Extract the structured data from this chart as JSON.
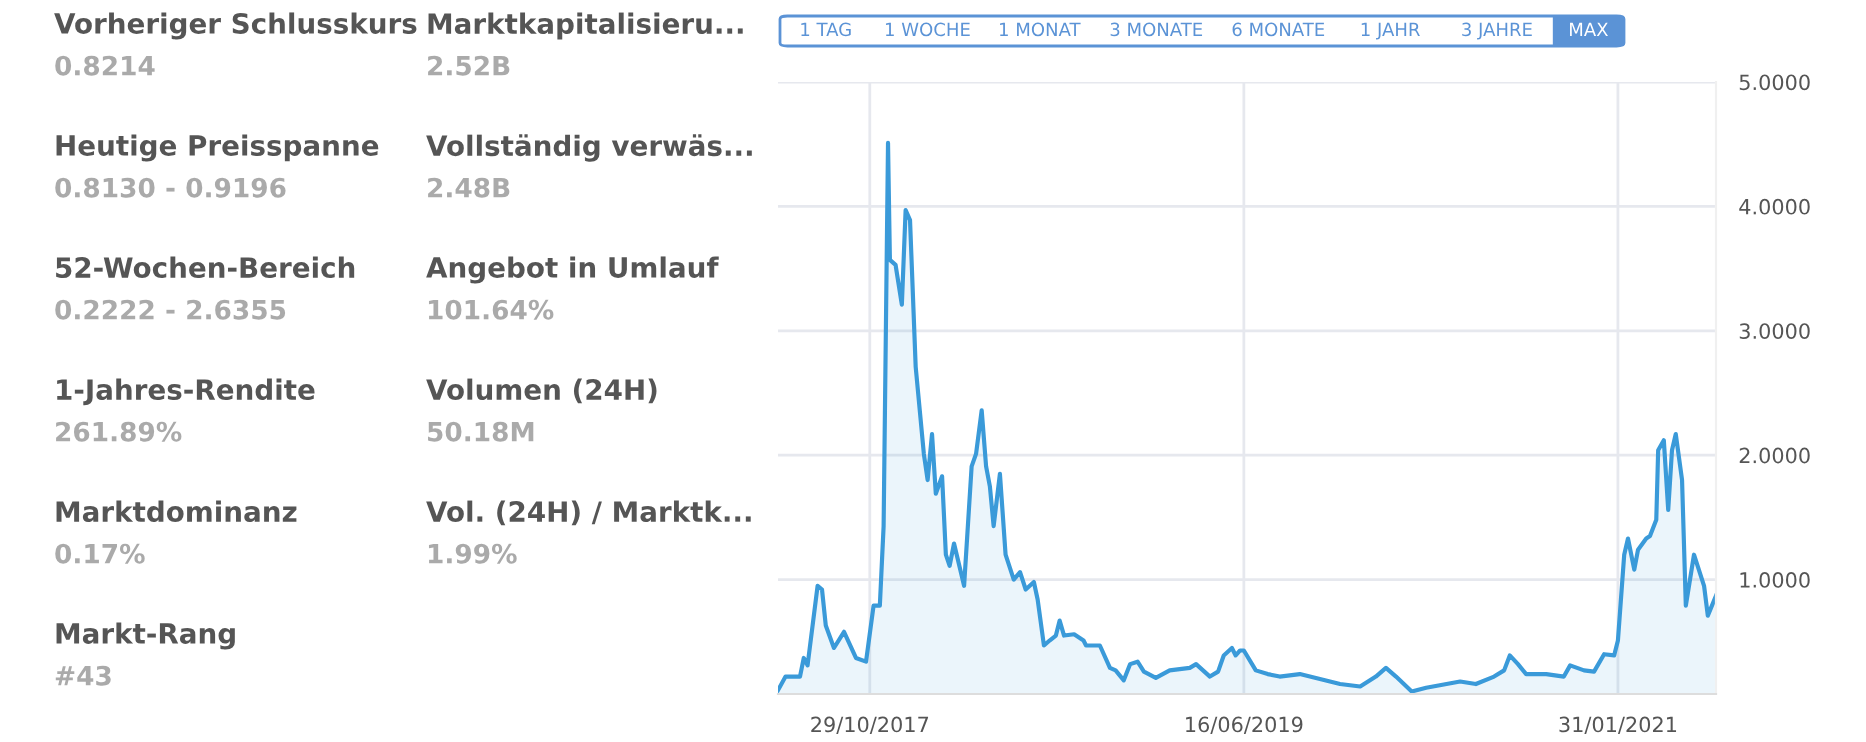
{
  "chart_data": [
    {
      "type": "other",
      "annotations": [
        "Vorheriger Schlusskurs",
        "0.8214",
        "Heutige Preisspanne",
        "0.8130 - 0.9196",
        "52-Wochen-Bereich",
        "0.2222 - 2.6355",
        "1-Jahres-Rendite",
        "261.89%",
        "Marktdominanz",
        "0.17%",
        "Markt-Rang",
        "#43",
        "Marktkapitalisieru...",
        "2.52B",
        "Vollständig verwäs...",
        "2.48B",
        "Angebot in Umlauf",
        "101.64%",
        "Volumen (24H)",
        "50.18M",
        "Vol. (24H) / Marktk...",
        "1.99%"
      ]
    },
    {
      "type": "area",
      "annotations": [
        "1 TAG",
        "1 WOCHE",
        "1 MONAT",
        "3 MONATE",
        "6 MONATE",
        "1 JAHR",
        "3 JAHRE",
        "MAX"
      ],
      "x": [
        "2017-06-05",
        "2017-06-17",
        "2017-07-10",
        "2017-07-16",
        "2017-07-22",
        "2017-08-07",
        "2017-08-14",
        "2017-08-20",
        "2017-09-02",
        "2017-09-18",
        "2017-10-07",
        "2017-10-23",
        "2017-11-04",
        "2017-11-14",
        "2017-11-20",
        "2017-11-27",
        "2017-11-30",
        "2017-12-09",
        "2017-12-19",
        "2017-12-25",
        "2018-01-01",
        "2018-01-10",
        "2018-01-23",
        "2018-01-29",
        "2018-02-05",
        "2018-02-11",
        "2018-02-21",
        "2018-02-27",
        "2018-03-05",
        "2018-03-12",
        "2018-03-28",
        "2018-04-09",
        "2018-04-16",
        "2018-04-25",
        "2018-05-02",
        "2018-05-08",
        "2018-05-14",
        "2018-05-24",
        "2018-06-02",
        "2018-06-15",
        "2018-06-25",
        "2018-07-04",
        "2018-07-17",
        "2018-07-23",
        "2018-08-02",
        "2018-08-11",
        "2018-08-21",
        "2018-08-27",
        "2018-09-03",
        "2018-09-19",
        "2018-10-04",
        "2018-10-08",
        "2018-10-30",
        "2018-11-15",
        "2018-11-24",
        "2018-12-07",
        "2018-12-17",
        "2018-12-29",
        "2019-01-08",
        "2019-01-27",
        "2019-02-18",
        "2019-03-22",
        "2019-04-01",
        "2019-04-23",
        "2019-05-06",
        "2019-05-15",
        "2019-05-28",
        "2019-06-03",
        "2019-06-10",
        "2019-06-16",
        "2019-07-05",
        "2019-07-24",
        "2019-08-12",
        "2019-09-13",
        "2019-11-16",
        "2019-12-18",
        "2020-01-12",
        "2020-01-28",
        "2020-02-13",
        "2020-03-09",
        "2020-04-01",
        "2020-05-25",
        "2020-06-19",
        "2020-07-18",
        "2020-08-03",
        "2020-08-12",
        "2020-08-25",
        "2020-09-07",
        "2020-10-09",
        "2020-11-06",
        "2020-11-16",
        "2020-12-08",
        "2020-12-24",
        "2021-01-09",
        "2021-01-25",
        "2021-01-31",
        "2021-02-10",
        "2021-02-16",
        "2021-02-26",
        "2021-03-04",
        "2021-03-17",
        "2021-03-23",
        "2021-04-02",
        "2021-04-05",
        "2021-04-14",
        "2021-04-21",
        "2021-04-27",
        "2021-05-03",
        "2021-05-13",
        "2021-05-19",
        "2021-06-01",
        "2021-06-17",
        "2021-06-23",
        "2021-07-06"
      ],
      "series": [
        {
          "color": "#3a9ad9",
          "values": [
            0.11,
            0.22,
            0.22,
            0.37,
            0.31,
            0.95,
            0.92,
            0.63,
            0.45,
            0.58,
            0.37,
            0.34,
            0.79,
            0.79,
            1.43,
            4.51,
            3.57,
            3.53,
            3.21,
            3.97,
            3.89,
            2.71,
            2.01,
            1.8,
            2.17,
            1.69,
            1.83,
            1.2,
            1.11,
            1.29,
            0.95,
            1.91,
            2.01,
            2.36,
            1.91,
            1.75,
            1.43,
            1.85,
            1.2,
            1.0,
            1.06,
            0.92,
            0.98,
            0.84,
            0.47,
            0.51,
            0.55,
            0.67,
            0.55,
            0.56,
            0.51,
            0.47,
            0.47,
            0.29,
            0.27,
            0.19,
            0.32,
            0.34,
            0.26,
            0.21,
            0.27,
            0.29,
            0.32,
            0.22,
            0.26,
            0.39,
            0.45,
            0.39,
            0.43,
            0.43,
            0.27,
            0.24,
            0.22,
            0.24,
            0.16,
            0.14,
            0.22,
            0.29,
            0.22,
            0.1,
            0.13,
            0.18,
            0.16,
            0.22,
            0.27,
            0.39,
            0.32,
            0.24,
            0.24,
            0.22,
            0.31,
            0.27,
            0.26,
            0.4,
            0.39,
            0.51,
            1.2,
            1.33,
            1.08,
            1.24,
            1.33,
            1.35,
            1.48,
            2.04,
            2.12,
            1.56,
            2.04,
            2.17,
            1.8,
            0.79,
            1.2,
            0.95,
            0.71,
            0.87
          ]
        }
      ],
      "xlim": [
        "2017-06-05",
        "2021-07-06"
      ],
      "xticks": [
        {
          "value": "2017-10-29",
          "label": "29/10/2017"
        },
        {
          "value": "2019-06-16",
          "label": "16/06/2019"
        },
        {
          "value": "2021-01-31",
          "label": "31/01/2021"
        }
      ],
      "ylim": [
        0.08,
        5.0
      ],
      "yticks": [
        {
          "value": 1.0,
          "label": "1.0000"
        },
        {
          "value": 2.0,
          "label": "2.0000"
        },
        {
          "value": 3.0,
          "label": "3.0000"
        },
        {
          "value": 4.0,
          "label": "4.0000"
        },
        {
          "value": 5.0,
          "label": "5.0000"
        }
      ],
      "grid": true,
      "legend": false
    }
  ]
}
